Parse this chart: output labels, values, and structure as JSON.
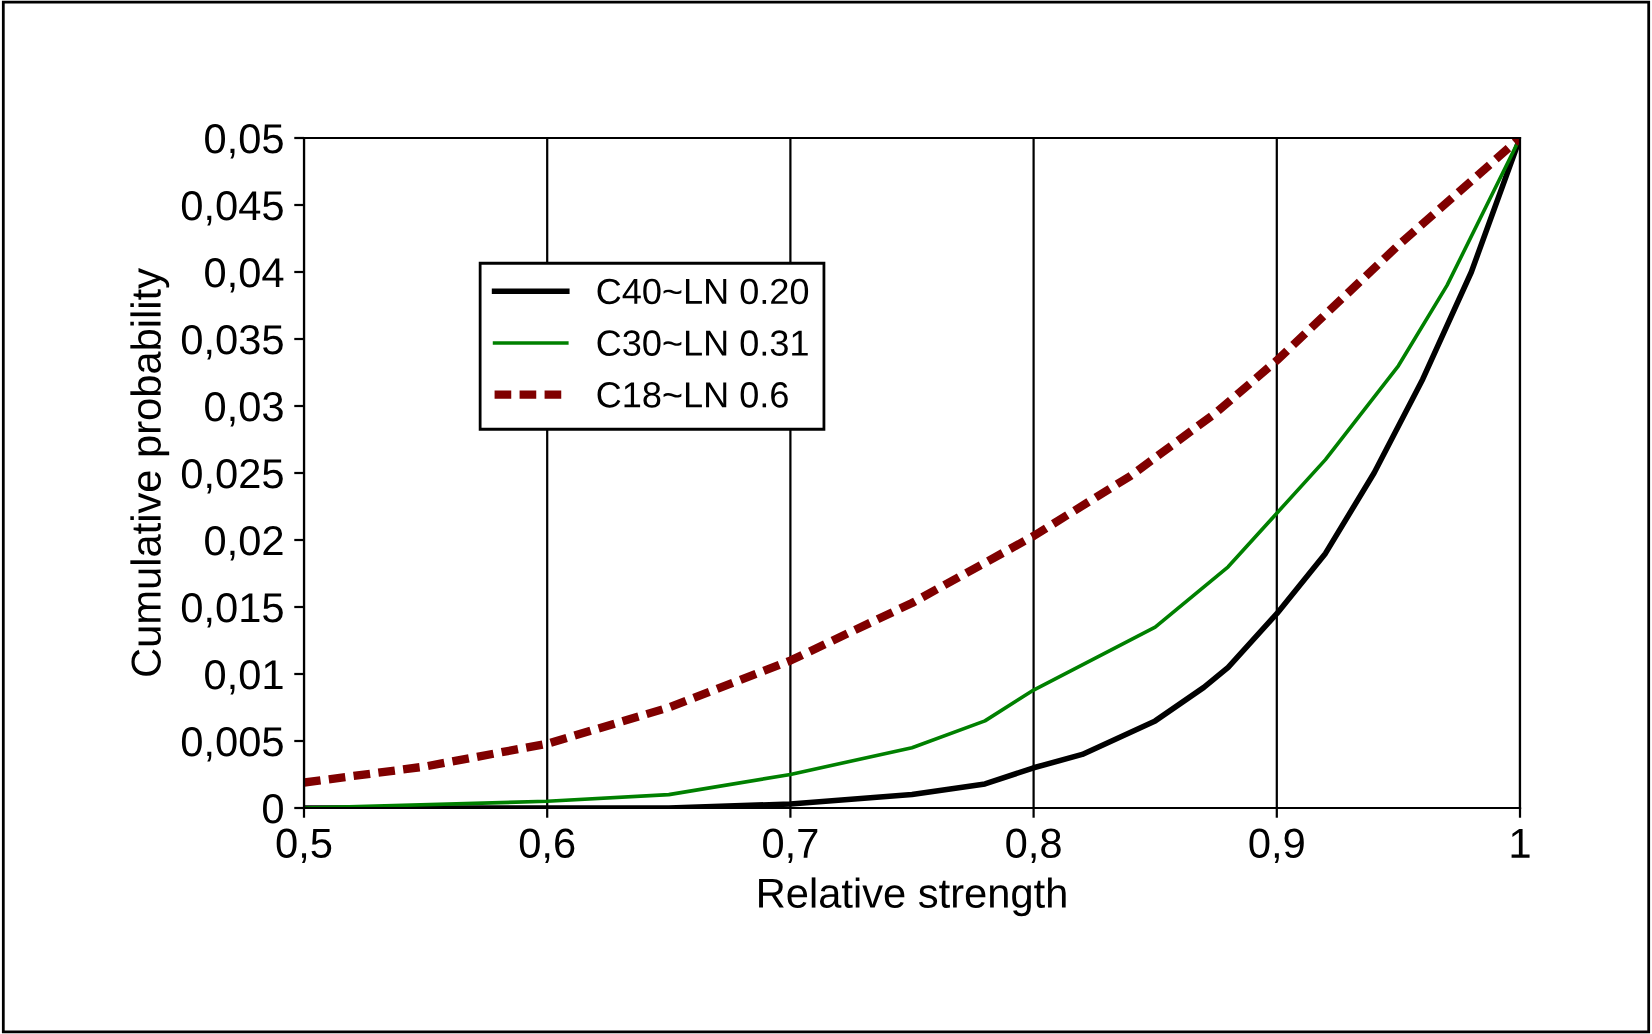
{
  "chart_data": {
    "type": "line",
    "xlabel": "Relative strength",
    "ylabel": "Cumulative probability",
    "xlim": [
      0.5,
      1
    ],
    "xticks": [
      {
        "value": 0.5,
        "label": "0,5"
      },
      {
        "value": 0.6,
        "label": "0,6"
      },
      {
        "value": 0.7,
        "label": "0,7"
      },
      {
        "value": 0.8,
        "label": "0,8"
      },
      {
        "value": 0.9,
        "label": "0,9"
      },
      {
        "value": 1,
        "label": "1"
      }
    ],
    "ylim": [
      0,
      0.05
    ],
    "yticks": [
      {
        "value": 0,
        "label": "0"
      },
      {
        "value": 0.005,
        "label": "0,005"
      },
      {
        "value": 0.01,
        "label": "0,01"
      },
      {
        "value": 0.015,
        "label": "0,015"
      },
      {
        "value": 0.02,
        "label": "0,02"
      },
      {
        "value": 0.025,
        "label": "0,025"
      },
      {
        "value": 0.03,
        "label": "0,03"
      },
      {
        "value": 0.035,
        "label": "0,035"
      },
      {
        "value": 0.04,
        "label": "0,04"
      },
      {
        "value": 0.045,
        "label": "0,045"
      },
      {
        "value": 0.05,
        "label": "0,05"
      }
    ],
    "grid": "x",
    "legend": "top left",
    "marker": "none",
    "series": [
      {
        "name": "C40~LN 0.20",
        "color": "#000000",
        "line_style": "solid",
        "x": [
          0.5,
          0.6,
          0.65,
          0.7,
          0.75,
          0.78,
          0.8,
          0.82,
          0.85,
          0.87,
          0.88,
          0.9,
          0.92,
          0.94,
          0.96,
          0.98,
          1
        ],
        "values": [
          0,
          0,
          0,
          0.0003,
          0.001,
          0.0018,
          0.003,
          0.004,
          0.0065,
          0.009,
          0.0105,
          0.0145,
          0.019,
          0.025,
          0.032,
          0.04,
          0.05
        ]
      },
      {
        "name": "C30~LN 0.31",
        "color": "#008000",
        "line_style": "solid",
        "x": [
          0.5,
          0.6,
          0.65,
          0.7,
          0.75,
          0.78,
          0.8,
          0.85,
          0.88,
          0.9,
          0.92,
          0.95,
          0.97,
          1
        ],
        "values": [
          0,
          0.0005,
          0.001,
          0.0025,
          0.0045,
          0.0065,
          0.0088,
          0.0135,
          0.018,
          0.022,
          0.026,
          0.033,
          0.039,
          0.05
        ]
      },
      {
        "name": "C18~LN 0.6",
        "color": "#800000",
        "line_style": "dashed",
        "x": [
          0.5,
          0.55,
          0.6,
          0.65,
          0.7,
          0.75,
          0.8,
          0.84,
          0.875,
          0.9,
          0.95,
          1
        ],
        "values": [
          0.0019,
          0.0031,
          0.0048,
          0.0075,
          0.011,
          0.0153,
          0.0203,
          0.0248,
          0.0295,
          0.0334,
          0.042,
          0.05
        ]
      }
    ]
  }
}
